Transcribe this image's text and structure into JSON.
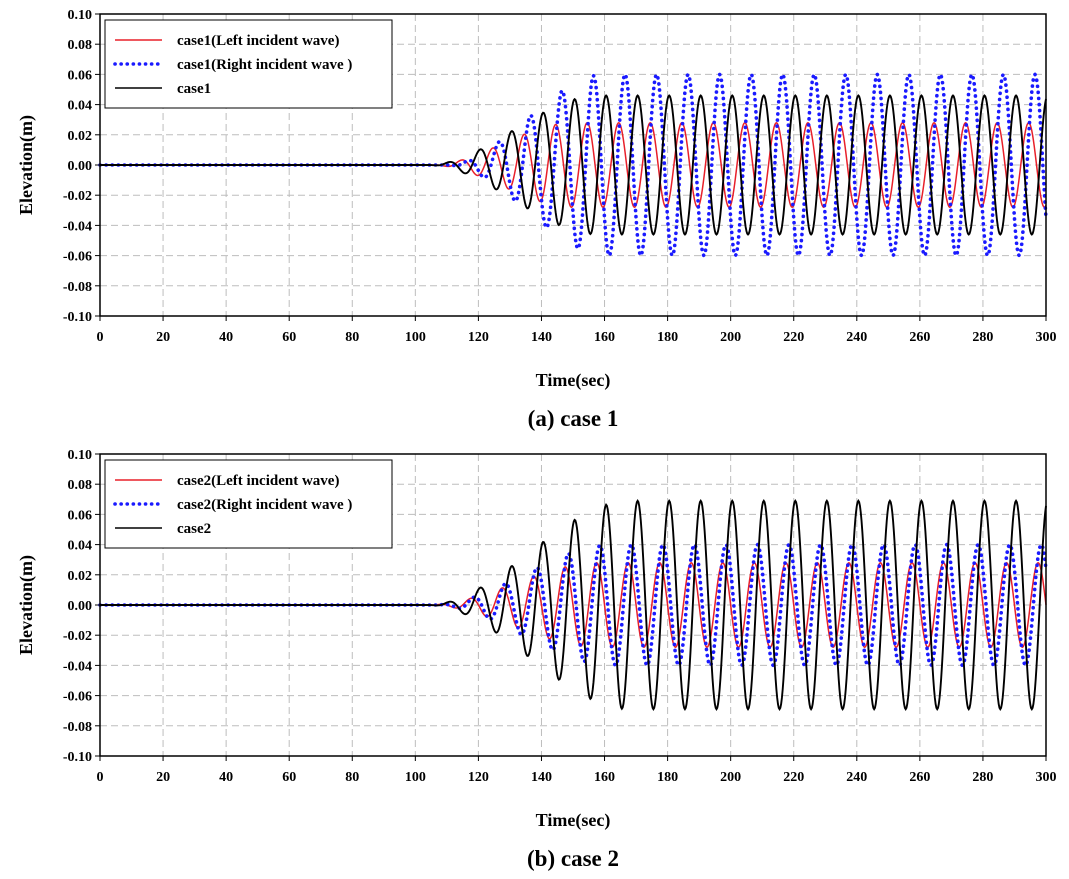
{
  "chart_data": [
    {
      "type": "line",
      "caption": "(a) case 1",
      "xlabel": "Time(sec)",
      "ylabel": "Elevation(m)",
      "xlim": [
        0,
        300
      ],
      "ylim": [
        -0.1,
        0.1
      ],
      "xticks": [
        0,
        20,
        40,
        60,
        80,
        100,
        120,
        140,
        160,
        180,
        200,
        220,
        240,
        260,
        280,
        300
      ],
      "yticks": [
        "0.10",
        "0.08",
        "0.06",
        "0.04",
        "0.02",
        "0.00",
        "-0.02",
        "-0.04",
        "-0.06",
        "-0.08",
        "-0.10"
      ],
      "grid": true,
      "legend_position": "top-left",
      "series": [
        {
          "name": "case1(Left incident wave)",
          "color": "#e8202a",
          "style": "solid",
          "wave": {
            "period": 10,
            "amplitude": 0.028,
            "start": 105,
            "ramp_end": 150,
            "phase_time": 112
          }
        },
        {
          "name": "case1(Right incident wave )",
          "color": "#1a1aff",
          "style": "dotted",
          "wave": {
            "period": 10,
            "amplitude": 0.06,
            "start": 110,
            "ramp_end": 160,
            "phase_time": 114
          }
        },
        {
          "name": "case1",
          "color": "#000000",
          "style": "solid",
          "wave": {
            "period": 10,
            "amplitude": 0.046,
            "start": 104,
            "ramp_end": 158,
            "phase_time": 118
          }
        }
      ]
    },
    {
      "type": "line",
      "caption": "(b) case 2",
      "xlabel": "Time(sec)",
      "ylabel": "Elevation(m)",
      "xlim": [
        0,
        300
      ],
      "ylim": [
        -0.1,
        0.1
      ],
      "xticks": [
        0,
        20,
        40,
        60,
        80,
        100,
        120,
        140,
        160,
        180,
        200,
        220,
        240,
        260,
        280,
        300
      ],
      "yticks": [
        "0.10",
        "0.08",
        "0.06",
        "0.04",
        "0.02",
        "0.00",
        "-0.02",
        "-0.04",
        "-0.06",
        "-0.08",
        "-0.10"
      ],
      "grid": true,
      "legend_position": "top-left",
      "series": [
        {
          "name": "case2(Left incident wave)",
          "color": "#e8202a",
          "style": "solid",
          "wave": {
            "period": 10,
            "amplitude": 0.028,
            "start": 104,
            "ramp_end": 158,
            "phase_time": 115
          }
        },
        {
          "name": "case2(Right incident wave )",
          "color": "#1a1aff",
          "style": "dotted",
          "wave": {
            "period": 10,
            "amplitude": 0.04,
            "start": 106,
            "ramp_end": 162,
            "phase_time": 116
          }
        },
        {
          "name": "case2",
          "color": "#000000",
          "style": "solid",
          "wave": {
            "period": 10,
            "amplitude": 0.069,
            "start": 104,
            "ramp_end": 168,
            "phase_time": 118
          }
        }
      ]
    }
  ]
}
